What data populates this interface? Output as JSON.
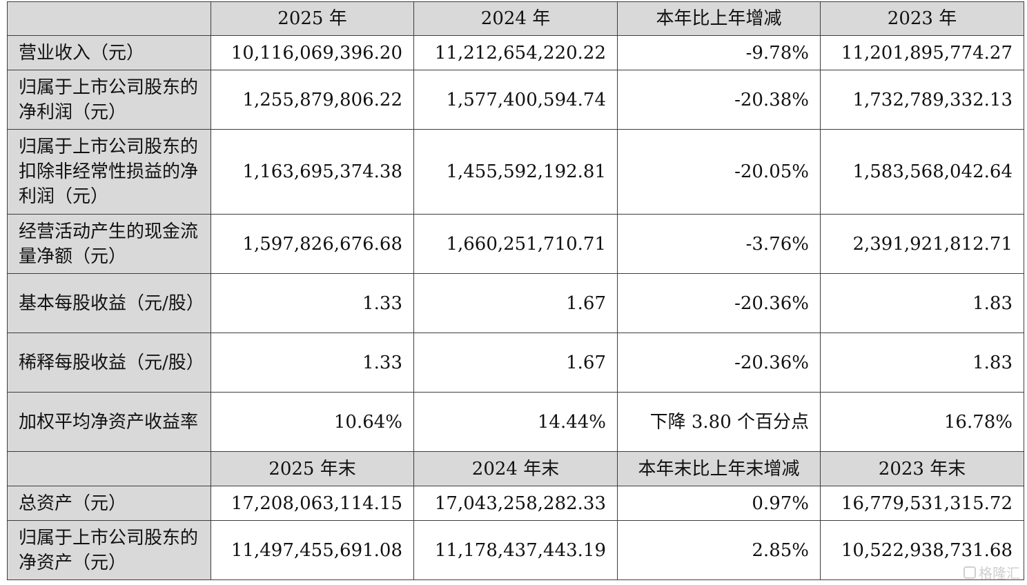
{
  "header1": [
    "2025 年",
    "2024 年",
    "本年比上年增减",
    "2023 年"
  ],
  "rows1": [
    {
      "label": "营业收入（元）",
      "v2025": "10,116,069,396.20",
      "v2024": "11,212,654,220.22",
      "chg": "-9.78%",
      "v2023": "11,201,895,774.27"
    },
    {
      "label": "归属于上市公司股东的净利润（元）",
      "v2025": "1,255,879,806.22",
      "v2024": "1,577,400,594.74",
      "chg": "-20.38%",
      "v2023": "1,732,789,332.13"
    },
    {
      "label": "归属于上市公司股东的扣除非经常性损益的净利润（元）",
      "v2025": "1,163,695,374.38",
      "v2024": "1,455,592,192.81",
      "chg": "-20.05%",
      "v2023": "1,583,568,042.64"
    },
    {
      "label": "经营活动产生的现金流量净额（元）",
      "v2025": "1,597,826,676.68",
      "v2024": "1,660,251,710.71",
      "chg": "-3.76%",
      "v2023": "2,391,921,812.71"
    },
    {
      "label": "基本每股收益（元/股）",
      "v2025": "1.33",
      "v2024": "1.67",
      "chg": "-20.36%",
      "v2023": "1.83"
    },
    {
      "label": "稀释每股收益（元/股）",
      "v2025": "1.33",
      "v2024": "1.67",
      "chg": "-20.36%",
      "v2023": "1.83"
    },
    {
      "label": "加权平均净资产收益率",
      "v2025": "10.64%",
      "v2024": "14.44%",
      "chg": "下降 3.80 个百分点",
      "v2023": "16.78%"
    }
  ],
  "header2": [
    "2025 年末",
    "2024 年末",
    "本年末比上年末增减",
    "2023 年末"
  ],
  "rows2": [
    {
      "label": "总资产（元）",
      "v2025": "17,208,063,114.15",
      "v2024": "17,043,258,282.33",
      "chg": "0.97%",
      "v2023": "16,779,531,315.72"
    },
    {
      "label": "归属于上市公司股东的净资产（元）",
      "v2025": "11,497,455,691.08",
      "v2024": "11,178,437,443.19",
      "chg": "2.85%",
      "v2023": "10,522,938,731.68"
    }
  ],
  "watermark": "格隆汇"
}
